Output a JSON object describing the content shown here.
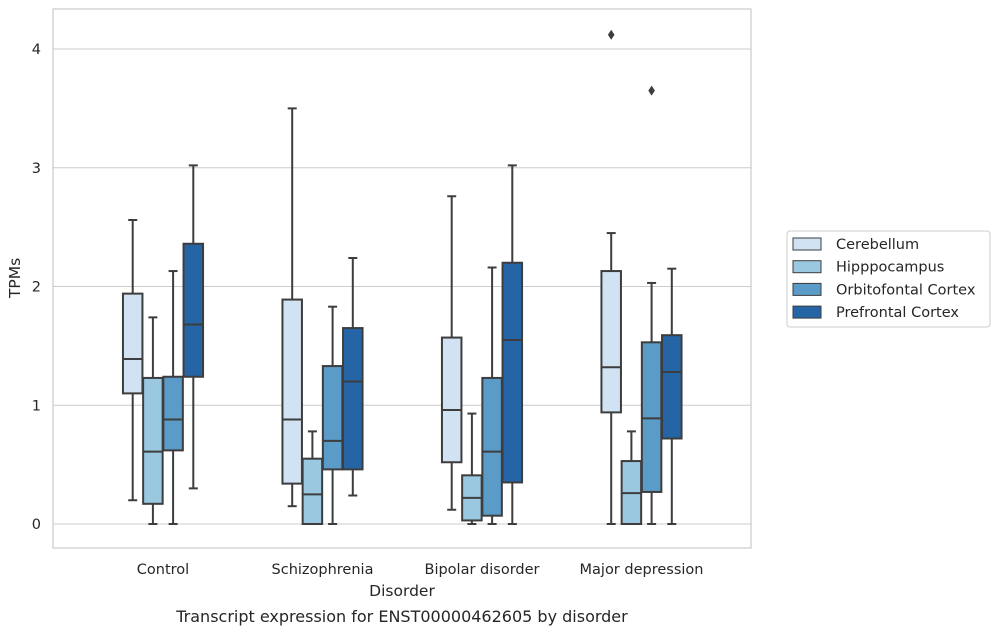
{
  "chart_data": {
    "type": "box",
    "title": "",
    "caption": "Transcript expression for ENST00000462605 by disorder",
    "xlabel": "Disorder",
    "ylabel": "TPMs",
    "ylim": [
      -0.2,
      4.33
    ],
    "yticks": [
      0,
      1,
      2,
      3,
      4
    ],
    "ytick_labels": [
      "0",
      "1",
      "2",
      "3",
      "4"
    ],
    "grid": true,
    "legend_position": "right",
    "categories": [
      "Control",
      "Schizophrenia",
      "Bipolar disorder",
      "Major depression"
    ],
    "series": [
      {
        "name": "Cerebellum",
        "color": "#d1e2f2",
        "boxes": [
          {
            "whisker_low": 0.2,
            "q1": 1.1,
            "median": 1.39,
            "q3": 1.94,
            "whisker_high": 2.56,
            "outliers": []
          },
          {
            "whisker_low": 0.15,
            "q1": 0.34,
            "median": 0.88,
            "q3": 1.89,
            "whisker_high": 3.5,
            "outliers": []
          },
          {
            "whisker_low": 0.12,
            "q1": 0.52,
            "median": 0.96,
            "q3": 1.57,
            "whisker_high": 2.76,
            "outliers": []
          },
          {
            "whisker_low": 0.0,
            "q1": 0.94,
            "median": 1.32,
            "q3": 2.13,
            "whisker_high": 2.45,
            "outliers": [
              4.12
            ]
          }
        ]
      },
      {
        "name": "Hipppocampus",
        "color": "#9ac8e0",
        "boxes": [
          {
            "whisker_low": 0.0,
            "q1": 0.17,
            "median": 0.61,
            "q3": 1.23,
            "whisker_high": 1.74,
            "outliers": []
          },
          {
            "whisker_low": 0.0,
            "q1": 0.0,
            "median": 0.25,
            "q3": 0.55,
            "whisker_high": 0.78,
            "outliers": []
          },
          {
            "whisker_low": 0.0,
            "q1": 0.03,
            "median": 0.22,
            "q3": 0.41,
            "whisker_high": 0.93,
            "outliers": []
          },
          {
            "whisker_low": 0.0,
            "q1": 0.0,
            "median": 0.26,
            "q3": 0.53,
            "whisker_high": 0.78,
            "outliers": []
          }
        ]
      },
      {
        "name": "Orbitofontal Cortex",
        "color": "#5a9bc8",
        "boxes": [
          {
            "whisker_low": 0.0,
            "q1": 0.62,
            "median": 0.88,
            "q3": 1.24,
            "whisker_high": 2.13,
            "outliers": []
          },
          {
            "whisker_low": 0.0,
            "q1": 0.46,
            "median": 0.7,
            "q3": 1.33,
            "whisker_high": 1.83,
            "outliers": []
          },
          {
            "whisker_low": 0.0,
            "q1": 0.07,
            "median": 0.61,
            "q3": 1.23,
            "whisker_high": 2.16,
            "outliers": []
          },
          {
            "whisker_low": 0.0,
            "q1": 0.27,
            "median": 0.89,
            "q3": 1.53,
            "whisker_high": 2.03,
            "outliers": [
              3.65
            ]
          }
        ]
      },
      {
        "name": "Prefrontal Cortex",
        "color": "#2565a6",
        "boxes": [
          {
            "whisker_low": 0.3,
            "q1": 1.24,
            "median": 1.68,
            "q3": 2.36,
            "whisker_high": 3.02,
            "outliers": []
          },
          {
            "whisker_low": 0.24,
            "q1": 0.46,
            "median": 1.2,
            "q3": 1.65,
            "whisker_high": 2.24,
            "outliers": []
          },
          {
            "whisker_low": 0.0,
            "q1": 0.35,
            "median": 1.55,
            "q3": 2.2,
            "whisker_high": 3.02,
            "outliers": []
          },
          {
            "whisker_low": 0.0,
            "q1": 0.72,
            "median": 1.28,
            "q3": 1.59,
            "whisker_high": 2.15,
            "outliers": []
          }
        ]
      }
    ]
  }
}
